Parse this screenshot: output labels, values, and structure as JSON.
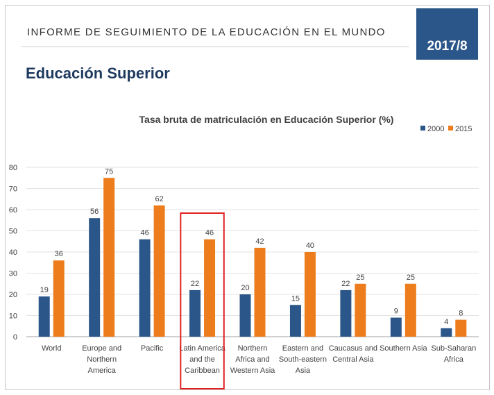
{
  "header": {
    "report_title": "INFORME DE SEGUIMIENTO DE LA EDUCACIÓN EN EL MUNDO",
    "year": "2017/8",
    "section_title": "Educación Superior"
  },
  "colors": {
    "series_2000": "#2b5689",
    "series_2015": "#ed7d1c",
    "highlight": "#e02020",
    "badge": "#2b5689"
  },
  "chart_data": {
    "type": "bar",
    "title": "Tasa bruta de matriculación en Educación Superior (%)",
    "xlabel": "",
    "ylabel": "",
    "ylim": [
      0,
      80
    ],
    "yticks": [
      0,
      10,
      20,
      30,
      40,
      50,
      60,
      70,
      80
    ],
    "grid": true,
    "legend_position": "top-right",
    "categories": [
      [
        "World"
      ],
      [
        "Europe and",
        "Northern",
        "America"
      ],
      [
        "Pacific"
      ],
      [
        "Latin America",
        "and the",
        "Caribbean"
      ],
      [
        "Northern",
        "Africa and",
        "Western Asia"
      ],
      [
        "Eastern and",
        "South-eastern",
        "Asia"
      ],
      [
        "Caucasus and",
        "Central Asia"
      ],
      [
        "Southern Asia"
      ],
      [
        "Sub-Saharan",
        "Africa"
      ]
    ],
    "series": [
      {
        "name": "2000",
        "values": [
          19,
          56,
          46,
          22,
          20,
          15,
          22,
          9,
          4
        ]
      },
      {
        "name": "2015",
        "values": [
          36,
          75,
          62,
          46,
          42,
          40,
          25,
          25,
          8
        ]
      }
    ],
    "highlight_category": 3
  }
}
